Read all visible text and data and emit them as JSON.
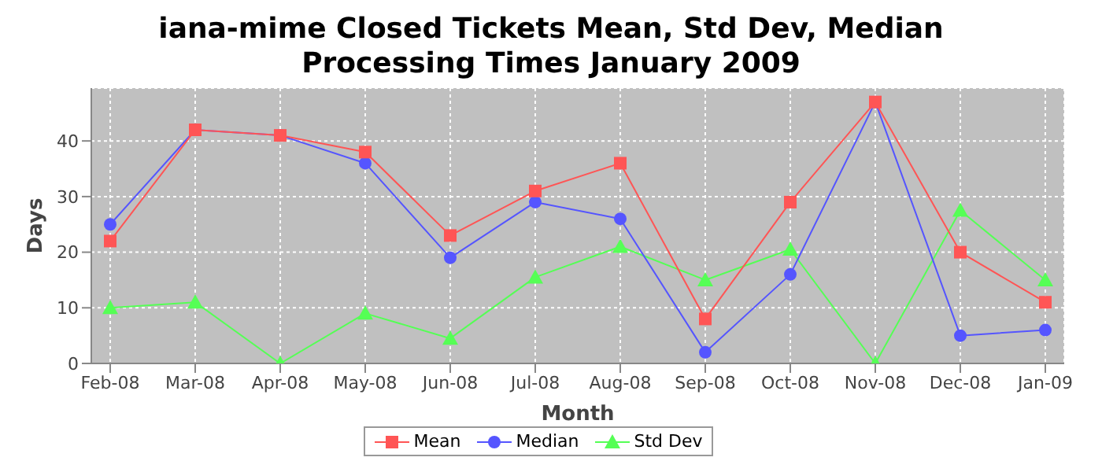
{
  "chart_data": {
    "type": "line",
    "title": "iana-mime Closed Tickets Mean, Std Dev, Median Processing Times January 2009",
    "xlabel": "Month",
    "ylabel": "Days",
    "categories": [
      "Feb-08",
      "Mar-08",
      "Apr-08",
      "May-08",
      "Jun-08",
      "Jul-08",
      "Aug-08",
      "Sep-08",
      "Oct-08",
      "Nov-08",
      "Dec-08",
      "Jan-09"
    ],
    "series": [
      {
        "name": "Mean",
        "color": "#ff5555",
        "marker": "square",
        "values": [
          22,
          42,
          41,
          38,
          23,
          31,
          36,
          8,
          29,
          47,
          20,
          11
        ]
      },
      {
        "name": "Median",
        "color": "#5555ff",
        "marker": "circle",
        "values": [
          25,
          42,
          41,
          36,
          19,
          29,
          26,
          2,
          16,
          47,
          5,
          6
        ]
      },
      {
        "name": "Std Dev",
        "color": "#55ff55",
        "marker": "triangle",
        "values": [
          10,
          11,
          0,
          9,
          4.5,
          15.5,
          21,
          15,
          20.5,
          0,
          27.5,
          15
        ]
      }
    ],
    "ylim": [
      0,
      49.5
    ],
    "yticks": [
      0,
      10,
      20,
      30,
      40
    ],
    "grid": true,
    "legend": "bottom",
    "line_style": "solid"
  }
}
